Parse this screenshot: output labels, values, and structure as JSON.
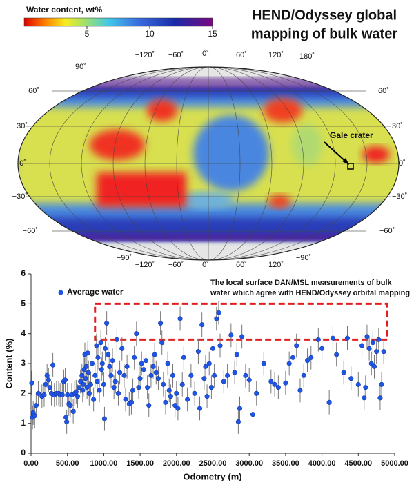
{
  "map": {
    "title_lines": [
      "HEND/Odyssey global",
      "mapping of bulk water"
    ],
    "colorbar": {
      "label": "Water content, wt%",
      "lim": [
        0,
        15
      ],
      "ticks": [
        5,
        10,
        15
      ]
    },
    "top_labels": [
      "90˚",
      "−120˚",
      "−60˚",
      "0˚",
      "60˚",
      "120˚",
      "180˚"
    ],
    "left_labels": [
      "60˚",
      "30˚",
      "0˚",
      "−30˚",
      "−60˚"
    ],
    "right_labels": [
      "60˚",
      "30˚",
      "0˚",
      "−30˚",
      "−60˚"
    ],
    "bottom_labels": [
      "−90˚",
      "−120˚",
      "−60˚",
      "0˚",
      "60˚",
      "120˚",
      "−90˚"
    ],
    "annotation": "Gale crater"
  },
  "chart_data": {
    "type": "scatter",
    "xlabel": "Odometry (m)",
    "ylabel": "Content (%)",
    "annotation_lines": [
      "The local surface DAN/MSL measurements of bulk",
      "water which agree with HEND/Odyssey orbital mapping"
    ],
    "highlight_box": {
      "x": [
        880,
        4900
      ],
      "y": [
        3.8,
        5.0
      ],
      "color": "#e02020"
    },
    "xlim": [
      0,
      5000
    ],
    "ylim": [
      0,
      6
    ],
    "xticks": [
      {
        "value": 0,
        "label": "0.00"
      },
      {
        "value": 500,
        "label": "500.00"
      },
      {
        "value": 1000,
        "label": "1000.00"
      },
      {
        "value": 1500,
        "label": "1500.00"
      },
      {
        "value": 2000,
        "label": "2000.00"
      },
      {
        "value": 2500,
        "label": "2500.00"
      },
      {
        "value": 3000,
        "label": "3000.00"
      },
      {
        "value": 3500,
        "label": "3500.00"
      },
      {
        "value": 4000,
        "label": "4000.00"
      },
      {
        "value": 4500,
        "label": "4500.00"
      },
      {
        "value": 5000,
        "label": "5000.00"
      }
    ],
    "yticks": [
      0,
      1,
      2,
      3,
      4,
      5,
      6
    ],
    "legend": "upper left",
    "error": 0.4,
    "series": [
      {
        "name": "Average water",
        "color": "#1f55e6",
        "x": [
          10,
          20,
          30,
          50,
          70,
          100,
          150,
          180,
          200,
          220,
          240,
          260,
          280,
          300,
          320,
          350,
          380,
          400,
          430,
          450,
          470,
          480,
          490,
          500,
          520,
          540,
          560,
          580,
          600,
          620,
          640,
          660,
          680,
          700,
          710,
          720,
          730,
          740,
          750,
          760,
          770,
          780,
          790,
          800,
          820,
          840,
          860,
          880,
          900,
          910,
          920,
          940,
          960,
          970,
          980,
          1000,
          1010,
          1020,
          1040,
          1060,
          1080,
          1100,
          1120,
          1140,
          1160,
          1180,
          1200,
          1220,
          1250,
          1280,
          1300,
          1320,
          1350,
          1380,
          1400,
          1420,
          1450,
          1480,
          1500,
          1520,
          1550,
          1580,
          1600,
          1620,
          1650,
          1680,
          1700,
          1720,
          1750,
          1780,
          1800,
          1820,
          1850,
          1880,
          1900,
          1920,
          1950,
          1980,
          2000,
          2020,
          2050,
          2080,
          2100,
          2150,
          2200,
          2250,
          2300,
          2320,
          2350,
          2380,
          2400,
          2420,
          2450,
          2480,
          2500,
          2520,
          2550,
          2580,
          2600,
          2650,
          2700,
          2750,
          2800,
          2830,
          2850,
          2870,
          2900,
          2950,
          3000,
          3050,
          3100,
          3200,
          3300,
          3350,
          3400,
          3500,
          3550,
          3600,
          3650,
          3700,
          3750,
          3800,
          3850,
          3950,
          4000,
          4100,
          4150,
          4200,
          4300,
          4350,
          4400,
          4500,
          4550,
          4580,
          4600,
          4620,
          4650,
          4680,
          4700,
          4720,
          4750,
          4780,
          4800,
          4820,
          4850
        ],
        "values": [
          2.35,
          1.2,
          1.35,
          1.25,
          1.6,
          2.0,
          1.9,
          1.95,
          2.3,
          2.6,
          2.45,
          2.2,
          2.0,
          2.95,
          1.95,
          2.0,
          2.0,
          1.95,
          1.95,
          2.4,
          2.45,
          1.2,
          1.05,
          1.95,
          1.65,
          1.6,
          1.95,
          1.4,
          2.0,
          2.05,
          1.9,
          2.2,
          2.4,
          2.6,
          2.1,
          2.3,
          2.8,
          3.3,
          2.5,
          2.9,
          2.2,
          3.35,
          2.7,
          2.0,
          2.3,
          3.0,
          1.8,
          2.6,
          3.6,
          2.4,
          3.2,
          2.1,
          3.7,
          2.8,
          3.0,
          2.3,
          1.15,
          3.5,
          4.35,
          3.3,
          2.9,
          2.6,
          3.1,
          2.2,
          2.4,
          3.8,
          2.0,
          2.7,
          3.5,
          2.6,
          1.8,
          2.9,
          1.65,
          1.7,
          2.1,
          3.2,
          4.0,
          2.2,
          2.5,
          3.0,
          2.8,
          3.1,
          2.2,
          1.6,
          2.6,
          2.9,
          3.3,
          2.7,
          2.5,
          4.35,
          3.7,
          2.3,
          1.7,
          3.0,
          2.1,
          1.9,
          2.6,
          1.6,
          2.0,
          1.5,
          4.5,
          2.3,
          3.2,
          1.8,
          2.6,
          2.0,
          3.4,
          1.5,
          4.3,
          2.5,
          2.9,
          1.9,
          3.0,
          2.2,
          3.5,
          2.6,
          4.5,
          4.7,
          3.6,
          2.4,
          2.6,
          3.95,
          2.7,
          3.3,
          1.05,
          1.5,
          3.9,
          2.6,
          2.45,
          1.3,
          2.0,
          3.0,
          2.4,
          2.3,
          2.2,
          2.35,
          3.0,
          3.2,
          3.6,
          2.1,
          2.6,
          3.1,
          3.2,
          3.8,
          3.5,
          1.7,
          3.85,
          3.3,
          2.7,
          3.85,
          2.5,
          2.3,
          3.6,
          1.85,
          2.2,
          3.9,
          3.5,
          3.0,
          3.7,
          2.9,
          3.4,
          3.8,
          1.85,
          2.3,
          3.4
        ]
      }
    ]
  }
}
